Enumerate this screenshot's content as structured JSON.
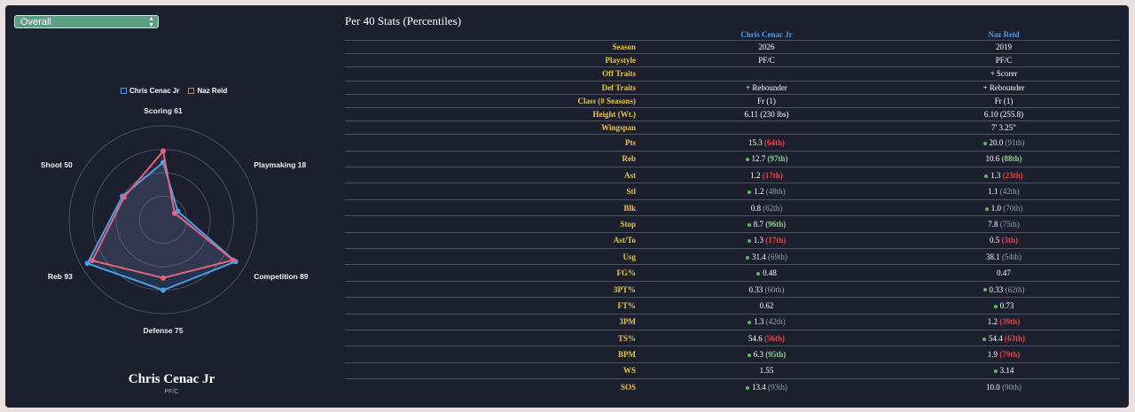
{
  "left": {
    "filter": {
      "selected": "Overall"
    },
    "legend": [
      {
        "name": "Chris Cenac Jr",
        "color": "#4a9eea"
      },
      {
        "name": "Naz Reid",
        "color": "#e0677e"
      }
    ],
    "radar": {
      "labels": [
        "Scoring 61",
        "Playmaking 18",
        "Competition 89",
        "Defense 75",
        "Reb 93",
        "Shoot 50"
      ],
      "series": [
        {
          "name": "Chris Cenac Jr",
          "color": "#4a9eea",
          "values": [
            61,
            18,
            89,
            75,
            93,
            50
          ]
        },
        {
          "name": "Naz Reid",
          "color": "#e0677e",
          "values": [
            73,
            14,
            86,
            62,
            87,
            48
          ]
        }
      ]
    },
    "player": {
      "name": "Chris Cenac Jr",
      "position": "PF/C"
    }
  },
  "stats": {
    "title": "Per 40 Stats (Percentiles)",
    "players": [
      "Chris Cenac Jr",
      "Naz Reid"
    ],
    "attributes": [
      {
        "label": "Season",
        "values": [
          "2026",
          "2019"
        ]
      },
      {
        "label": "Playstyle",
        "values": [
          "PF/C",
          "PF/C"
        ]
      },
      {
        "label": "Off Traits",
        "values": [
          "",
          "+ Scorer"
        ]
      },
      {
        "label": "Def Traits",
        "values": [
          "+ Rebounder",
          "+ Rebounder"
        ]
      },
      {
        "label": "Class (# Seasons)",
        "values": [
          "Fr (1)",
          "Fr (1)"
        ]
      },
      {
        "label": "Height (Wt.)",
        "values": [
          "6.11 (230 lbs)",
          "6.10 (255.8)"
        ]
      },
      {
        "label": "Wingspan",
        "values": [
          "",
          "7' 3.25\""
        ]
      }
    ],
    "rows": [
      {
        "label": "Pts",
        "cells": [
          {
            "dot": false,
            "value": "15.3",
            "pct": "(64th)",
            "tone": "red"
          },
          {
            "dot": true,
            "value": "20.0",
            "pct": "(91th)",
            "tone": "grey"
          }
        ]
      },
      {
        "label": "Reb",
        "cells": [
          {
            "dot": true,
            "value": "12.7",
            "pct": "(97th)",
            "tone": "green"
          },
          {
            "dot": false,
            "value": "10.6",
            "pct": "(88th)",
            "tone": "green"
          }
        ]
      },
      {
        "label": "Ast",
        "cells": [
          {
            "dot": false,
            "value": "1.2",
            "pct": "(17th)",
            "tone": "red"
          },
          {
            "dot": true,
            "value": "1.3",
            "pct": "(23th)",
            "tone": "red"
          }
        ]
      },
      {
        "label": "Stl",
        "cells": [
          {
            "dot": true,
            "value": "1.2",
            "pct": "(48th)",
            "tone": "grey"
          },
          {
            "dot": false,
            "value": "1.1",
            "pct": "(42th)",
            "tone": "grey"
          }
        ]
      },
      {
        "label": "Blk",
        "cells": [
          {
            "dot": false,
            "value": "0.8",
            "pct": "(62th)",
            "tone": "grey"
          },
          {
            "dot": true,
            "value": "1.0",
            "pct": "(70th)",
            "tone": "grey"
          }
        ]
      },
      {
        "label": "Stop",
        "cells": [
          {
            "dot": true,
            "value": "8.7",
            "pct": "(96th)",
            "tone": "green"
          },
          {
            "dot": false,
            "value": "7.8",
            "pct": "(75th)",
            "tone": "grey"
          }
        ]
      },
      {
        "label": "Ast/To",
        "cells": [
          {
            "dot": true,
            "value": "1.3",
            "pct": "(17th)",
            "tone": "red"
          },
          {
            "dot": false,
            "value": "0.5",
            "pct": "(3th)",
            "tone": "red"
          }
        ]
      },
      {
        "label": "Usg",
        "cells": [
          {
            "dot": true,
            "value": "31.4",
            "pct": "(69th)",
            "tone": "grey"
          },
          {
            "dot": false,
            "value": "38.1",
            "pct": "(54th)",
            "tone": "grey"
          }
        ]
      },
      {
        "label": "FG%",
        "cells": [
          {
            "dot": true,
            "value": "0.48",
            "pct": "",
            "tone": "grey"
          },
          {
            "dot": false,
            "value": "0.47",
            "pct": "",
            "tone": "grey"
          }
        ]
      },
      {
        "label": "3PT%",
        "cells": [
          {
            "dot": false,
            "value": "0.33",
            "pct": "(60th)",
            "tone": "grey"
          },
          {
            "dot": true,
            "value": "0.33",
            "pct": "(62th)",
            "tone": "grey"
          }
        ]
      },
      {
        "label": "FT%",
        "cells": [
          {
            "dot": false,
            "value": "0.62",
            "pct": "",
            "tone": "grey"
          },
          {
            "dot": true,
            "value": "0.73",
            "pct": "",
            "tone": "grey"
          }
        ]
      },
      {
        "label": "3PM",
        "cells": [
          {
            "dot": true,
            "value": "1.3",
            "pct": "(42th)",
            "tone": "grey"
          },
          {
            "dot": false,
            "value": "1.2",
            "pct": "(39th)",
            "tone": "red"
          }
        ]
      },
      {
        "label": "TS%",
        "cells": [
          {
            "dot": false,
            "value": "54.6",
            "pct": "(56th)",
            "tone": "red"
          },
          {
            "dot": true,
            "value": "54.4",
            "pct": "(63th)",
            "tone": "red"
          }
        ]
      },
      {
        "label": "BPM",
        "cells": [
          {
            "dot": true,
            "value": "6.3",
            "pct": "(95th)",
            "tone": "green"
          },
          {
            "dot": false,
            "value": "1.9",
            "pct": "(79th)",
            "tone": "red"
          }
        ]
      },
      {
        "label": "WS",
        "cells": [
          {
            "dot": false,
            "value": "1.55",
            "pct": "",
            "tone": "grey"
          },
          {
            "dot": true,
            "value": "3.14",
            "pct": "",
            "tone": "grey"
          }
        ]
      },
      {
        "label": "SOS",
        "cells": [
          {
            "dot": true,
            "value": "13.4",
            "pct": "(93th)",
            "tone": "grey"
          },
          {
            "dot": false,
            "value": "10.0",
            "pct": "(90th)",
            "tone": "grey"
          }
        ]
      }
    ]
  }
}
